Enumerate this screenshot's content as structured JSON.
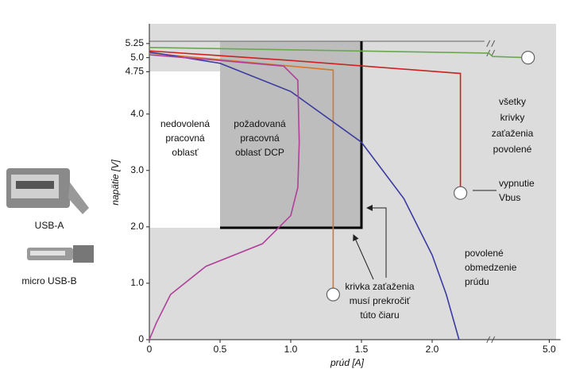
{
  "chart_data": {
    "type": "line",
    "y_label": "napätie [V]",
    "x_label": "prúd [A]",
    "xlim": [
      0,
      5.08
    ],
    "xbreak": [
      2.4,
      4.6
    ],
    "ylim": [
      0,
      5.6
    ],
    "xticks": [
      0,
      0.5,
      {
        "value": 1,
        "label": "1.0"
      },
      1.5,
      {
        "value": 2,
        "label": "2.0"
      },
      {
        "value": 5,
        "label": "5.0"
      }
    ],
    "yticks": [
      0,
      {
        "value": 1,
        "label": "1.0"
      },
      {
        "value": 2,
        "label": "2.0"
      },
      {
        "value": 3,
        "label": "3.0"
      },
      {
        "value": 4,
        "label": "4.0"
      },
      4.75,
      {
        "value": 5,
        "label": "5.0"
      },
      5.25
    ],
    "series": [
      {
        "color": "#6aa84f",
        "x": [
          0,
          2.4,
          4.6,
          4.85
        ],
        "values": [
          5.18,
          5.08,
          5.02,
          5.0
        ],
        "end_marker": true
      },
      {
        "color": "#cc2222",
        "x": [
          0,
          1.0,
          2.2,
          2.2
        ],
        "values": [
          5.12,
          4.95,
          4.72,
          2.6
        ],
        "end_marker": true
      },
      {
        "color": "#d9762b",
        "x": [
          0,
          1.3,
          1.3
        ],
        "values": [
          5.08,
          4.78,
          0.8
        ],
        "end_marker": true
      },
      {
        "color": "#3a3aa0",
        "x": [
          0,
          0.5,
          1.0,
          1.5,
          1.8,
          2.0,
          2.1,
          2.19
        ],
        "values": [
          5.1,
          4.9,
          4.4,
          3.5,
          2.5,
          1.5,
          0.8,
          0
        ],
        "end_marker": false
      },
      {
        "color": "#b0409a",
        "x": [
          0,
          0.5,
          0.95,
          1.05,
          1.06,
          1.05,
          1.0,
          0.8,
          0.4,
          0.15,
          0.05,
          0
        ],
        "values": [
          5.05,
          4.95,
          4.85,
          4.6,
          3.5,
          2.7,
          2.2,
          1.7,
          1.3,
          0.8,
          0.3,
          0
        ],
        "end_marker": false
      }
    ],
    "annotations": [
      [
        "nedovolená",
        "pracovná",
        "oblasť"
      ],
      [
        "požadovaná",
        "pracovná",
        "oblasť DCP"
      ],
      [
        "všetky",
        "krivky",
        "zaťaženia",
        "povolené"
      ],
      [
        "vypnutie",
        "Vbus"
      ],
      [
        "povolené",
        "obmedzenie",
        "prúdu"
      ],
      [
        "krivka zaťaženia",
        "musí prekročiť",
        "túto čiaru"
      ]
    ]
  },
  "connectors": {
    "usb_a": "USB-A",
    "micro_usb_b": "micro USB-B"
  }
}
